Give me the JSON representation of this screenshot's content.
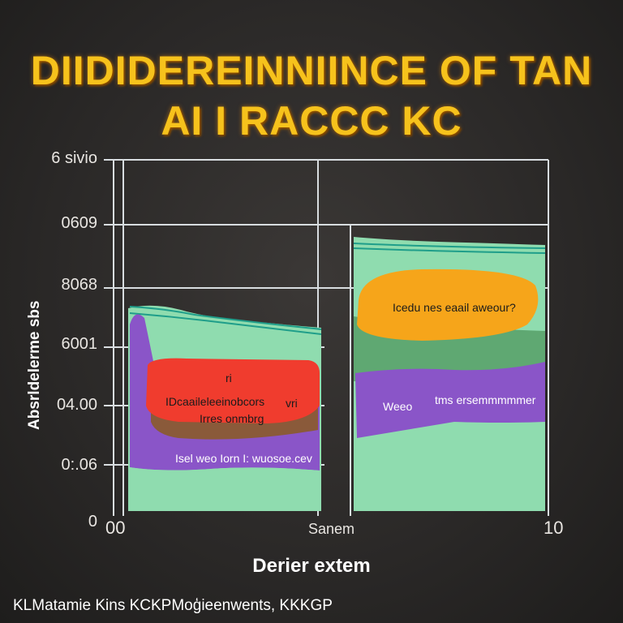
{
  "title_lines": [
    "DIIDIDEREINNIINCE OF TAN",
    "AI I RACCC KC"
  ],
  "footer": "KLMatamie Kins KCKPMoģieenwents, KKKGP",
  "colors": {
    "background": "#2a2827",
    "title": "#f6c21c",
    "mint": "#8fdcaf",
    "teal": "#1f9e8a",
    "purple": "#8a55c8",
    "red": "#f03c2e",
    "orange": "#f6a51a",
    "brown": "#8a5a3a",
    "green": "#5fa872",
    "grid": "#d8dde0"
  },
  "chart_data": {
    "type": "area",
    "title": "DIIDIDEREINNIINCE OF TAN AI I RACCC KC",
    "xlabel": "Derier extem",
    "ylabel": "Absrldelerme sbs",
    "y_tick_labels": [
      "0",
      "0:.06",
      "04.00",
      "6001",
      "8068",
      "0609",
      "6 sivio"
    ],
    "x_tick_labels": [
      "00",
      "Sanem",
      "10"
    ],
    "ylim": [
      0,
      6
    ],
    "grid": true,
    "panels": [
      {
        "name": "left",
        "layers": [
          {
            "color": "mint",
            "label": "",
            "top": 3.4
          },
          {
            "color": "purple",
            "label": "Isel weo Iorn   I: wuosoe.cev",
            "top": 3.0
          },
          {
            "color": "brown",
            "label": "",
            "top": 1.9
          },
          {
            "color": "red",
            "label": "IDcaaileleeinobcors",
            "sublabel": "Irres onmbrg",
            "top": 2.6
          }
        ],
        "annotations": [
          "ri",
          "vri"
        ]
      },
      {
        "name": "right",
        "layers": [
          {
            "color": "mint",
            "label": "",
            "top": 4.5
          },
          {
            "color": "green",
            "label": "",
            "top": 3.2
          },
          {
            "color": "purple",
            "label": "Weeo",
            "sublabel": "tms ersemmmmmer",
            "top": 1.9
          },
          {
            "color": "orange",
            "label": "Icedu nes eaail aweour?",
            "top": 3.7
          }
        ]
      }
    ]
  }
}
